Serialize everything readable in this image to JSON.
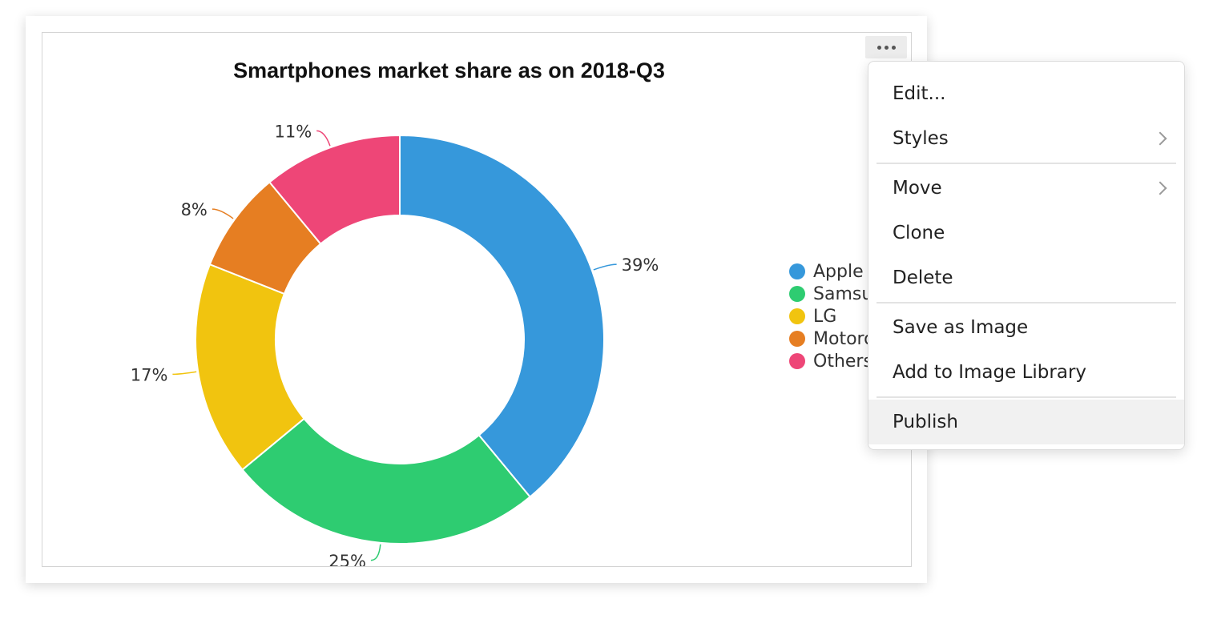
{
  "chart_data": {
    "type": "pie",
    "title": "Smartphones market share as on 2018-Q3",
    "donut": true,
    "categories": [
      "Apple",
      "Samsung",
      "LG",
      "Motorola",
      "Others"
    ],
    "values": [
      39,
      25,
      17,
      8,
      11
    ],
    "data_labels": [
      "39%",
      "25%",
      "17%",
      "8%",
      "11%"
    ],
    "colors": [
      "#3698db",
      "#2ecc71",
      "#f1c40f",
      "#e67e22",
      "#ee4677"
    ],
    "legend_labels": [
      "Apple",
      "Samsun",
      "LG",
      "Motorol",
      "Others"
    ],
    "legend_position": "right"
  },
  "toolbar": {
    "more_icon": "more-horizontal-icon"
  },
  "context_menu": {
    "items": [
      {
        "label": "Edit...",
        "submenu": false
      },
      {
        "label": "Styles",
        "submenu": true
      },
      {
        "label": "Move",
        "submenu": true
      },
      {
        "label": "Clone",
        "submenu": false
      },
      {
        "label": "Delete",
        "submenu": false
      },
      {
        "label": "Save as Image",
        "submenu": false
      },
      {
        "label": "Add to Image Library",
        "submenu": false
      },
      {
        "label": "Publish",
        "submenu": false,
        "highlighted": true
      }
    ],
    "submenu_icon": "chevron-right-icon"
  }
}
